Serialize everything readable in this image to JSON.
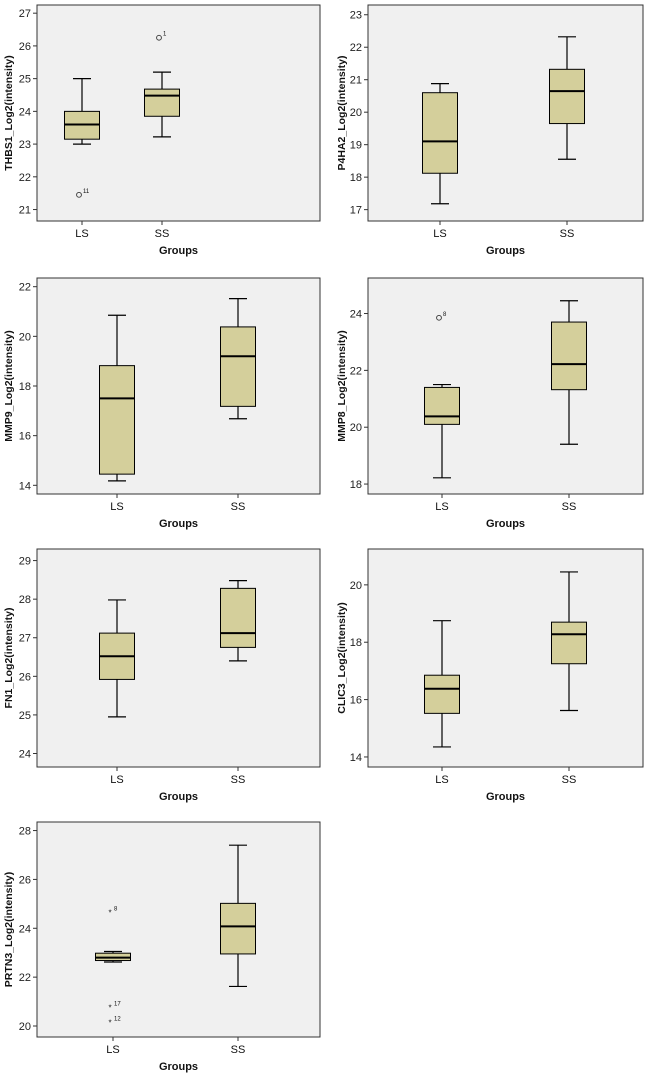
{
  "style": {
    "plot_bg": "#f0f0f0",
    "box_fill": "#d4cf9b",
    "line": "#000000"
  },
  "chart_data": [
    {
      "type": "box",
      "ylabel": "THBS1_Log2(intensity)",
      "xlabel": "Groups",
      "categories": [
        "LS",
        "SS"
      ],
      "ylim": [
        20.65,
        27.25
      ],
      "yticks": [
        21,
        22,
        23,
        24,
        25,
        26,
        27
      ],
      "boxes": [
        {
          "group": "LS",
          "min": 23.0,
          "q1": 23.15,
          "median": 23.6,
          "q3": 24.0,
          "max": 25.0,
          "outliers": [
            {
              "value": 21.45,
              "marker": "circle",
              "label": "11"
            }
          ]
        },
        {
          "group": "SS",
          "min": 23.22,
          "q1": 23.85,
          "median": 24.48,
          "q3": 24.68,
          "max": 25.2,
          "outliers": [
            {
              "value": 26.25,
              "marker": "circle",
              "label": "1"
            }
          ]
        }
      ]
    },
    {
      "type": "box",
      "ylabel": "P4HA2_Log2(intensity)",
      "xlabel": "Groups",
      "categories": [
        "LS",
        "SS"
      ],
      "ylim": [
        16.65,
        23.3
      ],
      "yticks": [
        17,
        18,
        19,
        20,
        21,
        22,
        23
      ],
      "boxes": [
        {
          "group": "LS",
          "min": 17.18,
          "q1": 18.12,
          "median": 19.1,
          "q3": 20.6,
          "max": 20.88,
          "outliers": []
        },
        {
          "group": "SS",
          "min": 18.55,
          "q1": 19.65,
          "median": 20.65,
          "q3": 21.32,
          "max": 22.32,
          "outliers": []
        }
      ]
    },
    {
      "type": "box",
      "ylabel": "MMP9_Log2(intensity)",
      "xlabel": "Groups",
      "categories": [
        "LS",
        "SS"
      ],
      "ylim": [
        13.65,
        22.35
      ],
      "yticks": [
        14,
        16,
        18,
        20,
        22
      ],
      "boxes": [
        {
          "group": "LS",
          "min": 14.18,
          "q1": 14.45,
          "median": 17.5,
          "q3": 18.82,
          "max": 20.85,
          "outliers": []
        },
        {
          "group": "SS",
          "min": 16.68,
          "q1": 17.18,
          "median": 19.2,
          "q3": 20.38,
          "max": 21.52,
          "outliers": []
        }
      ]
    },
    {
      "type": "box",
      "ylabel": "MMP8_Log2(intensity)",
      "xlabel": "Groups",
      "categories": [
        "LS",
        "SS"
      ],
      "ylim": [
        17.65,
        25.25
      ],
      "yticks": [
        18,
        20,
        22,
        24
      ],
      "boxes": [
        {
          "group": "LS",
          "min": 18.22,
          "q1": 20.1,
          "median": 20.38,
          "q3": 21.4,
          "max": 21.5,
          "outliers": [
            {
              "value": 23.85,
              "marker": "circle",
              "label": "8"
            }
          ]
        },
        {
          "group": "SS",
          "min": 19.4,
          "q1": 21.32,
          "median": 22.22,
          "q3": 23.7,
          "max": 24.45,
          "outliers": []
        }
      ]
    },
    {
      "type": "box",
      "ylabel": "FN1_Log2(intensity)",
      "xlabel": "Groups",
      "categories": [
        "LS",
        "SS"
      ],
      "ylim": [
        23.65,
        29.3
      ],
      "yticks": [
        24,
        25,
        26,
        27,
        28,
        29
      ],
      "boxes": [
        {
          "group": "LS",
          "min": 24.95,
          "q1": 25.92,
          "median": 26.52,
          "q3": 27.12,
          "max": 27.98,
          "outliers": []
        },
        {
          "group": "SS",
          "min": 26.4,
          "q1": 26.75,
          "median": 27.12,
          "q3": 28.28,
          "max": 28.48,
          "outliers": []
        }
      ]
    },
    {
      "type": "box",
      "ylabel": "CLIC3_Log2(intensity)",
      "xlabel": "Groups",
      "categories": [
        "LS",
        "SS"
      ],
      "ylim": [
        13.65,
        21.25
      ],
      "yticks": [
        14,
        16,
        18,
        20
      ],
      "boxes": [
        {
          "group": "LS",
          "min": 14.35,
          "q1": 15.52,
          "median": 16.38,
          "q3": 16.85,
          "max": 18.75,
          "outliers": []
        },
        {
          "group": "SS",
          "min": 15.62,
          "q1": 17.25,
          "median": 18.28,
          "q3": 18.7,
          "max": 20.45,
          "outliers": []
        }
      ]
    },
    {
      "type": "box",
      "ylabel": "PRTN3_Log2(intensity)",
      "xlabel": "Groups",
      "categories": [
        "LS",
        "SS"
      ],
      "ylim": [
        19.55,
        28.35
      ],
      "yticks": [
        20,
        22,
        24,
        26,
        28
      ],
      "boxes": [
        {
          "group": "LS",
          "min": 22.62,
          "q1": 22.68,
          "median": 22.8,
          "q3": 22.98,
          "max": 23.05,
          "outliers": [
            {
              "value": 24.65,
              "marker": "star",
              "label": "8"
            },
            {
              "value": 20.75,
              "marker": "star",
              "label": "17"
            },
            {
              "value": 20.15,
              "marker": "star",
              "label": "12"
            }
          ]
        },
        {
          "group": "SS",
          "min": 21.62,
          "q1": 22.95,
          "median": 24.08,
          "q3": 25.02,
          "max": 27.4,
          "outliers": []
        }
      ]
    }
  ]
}
